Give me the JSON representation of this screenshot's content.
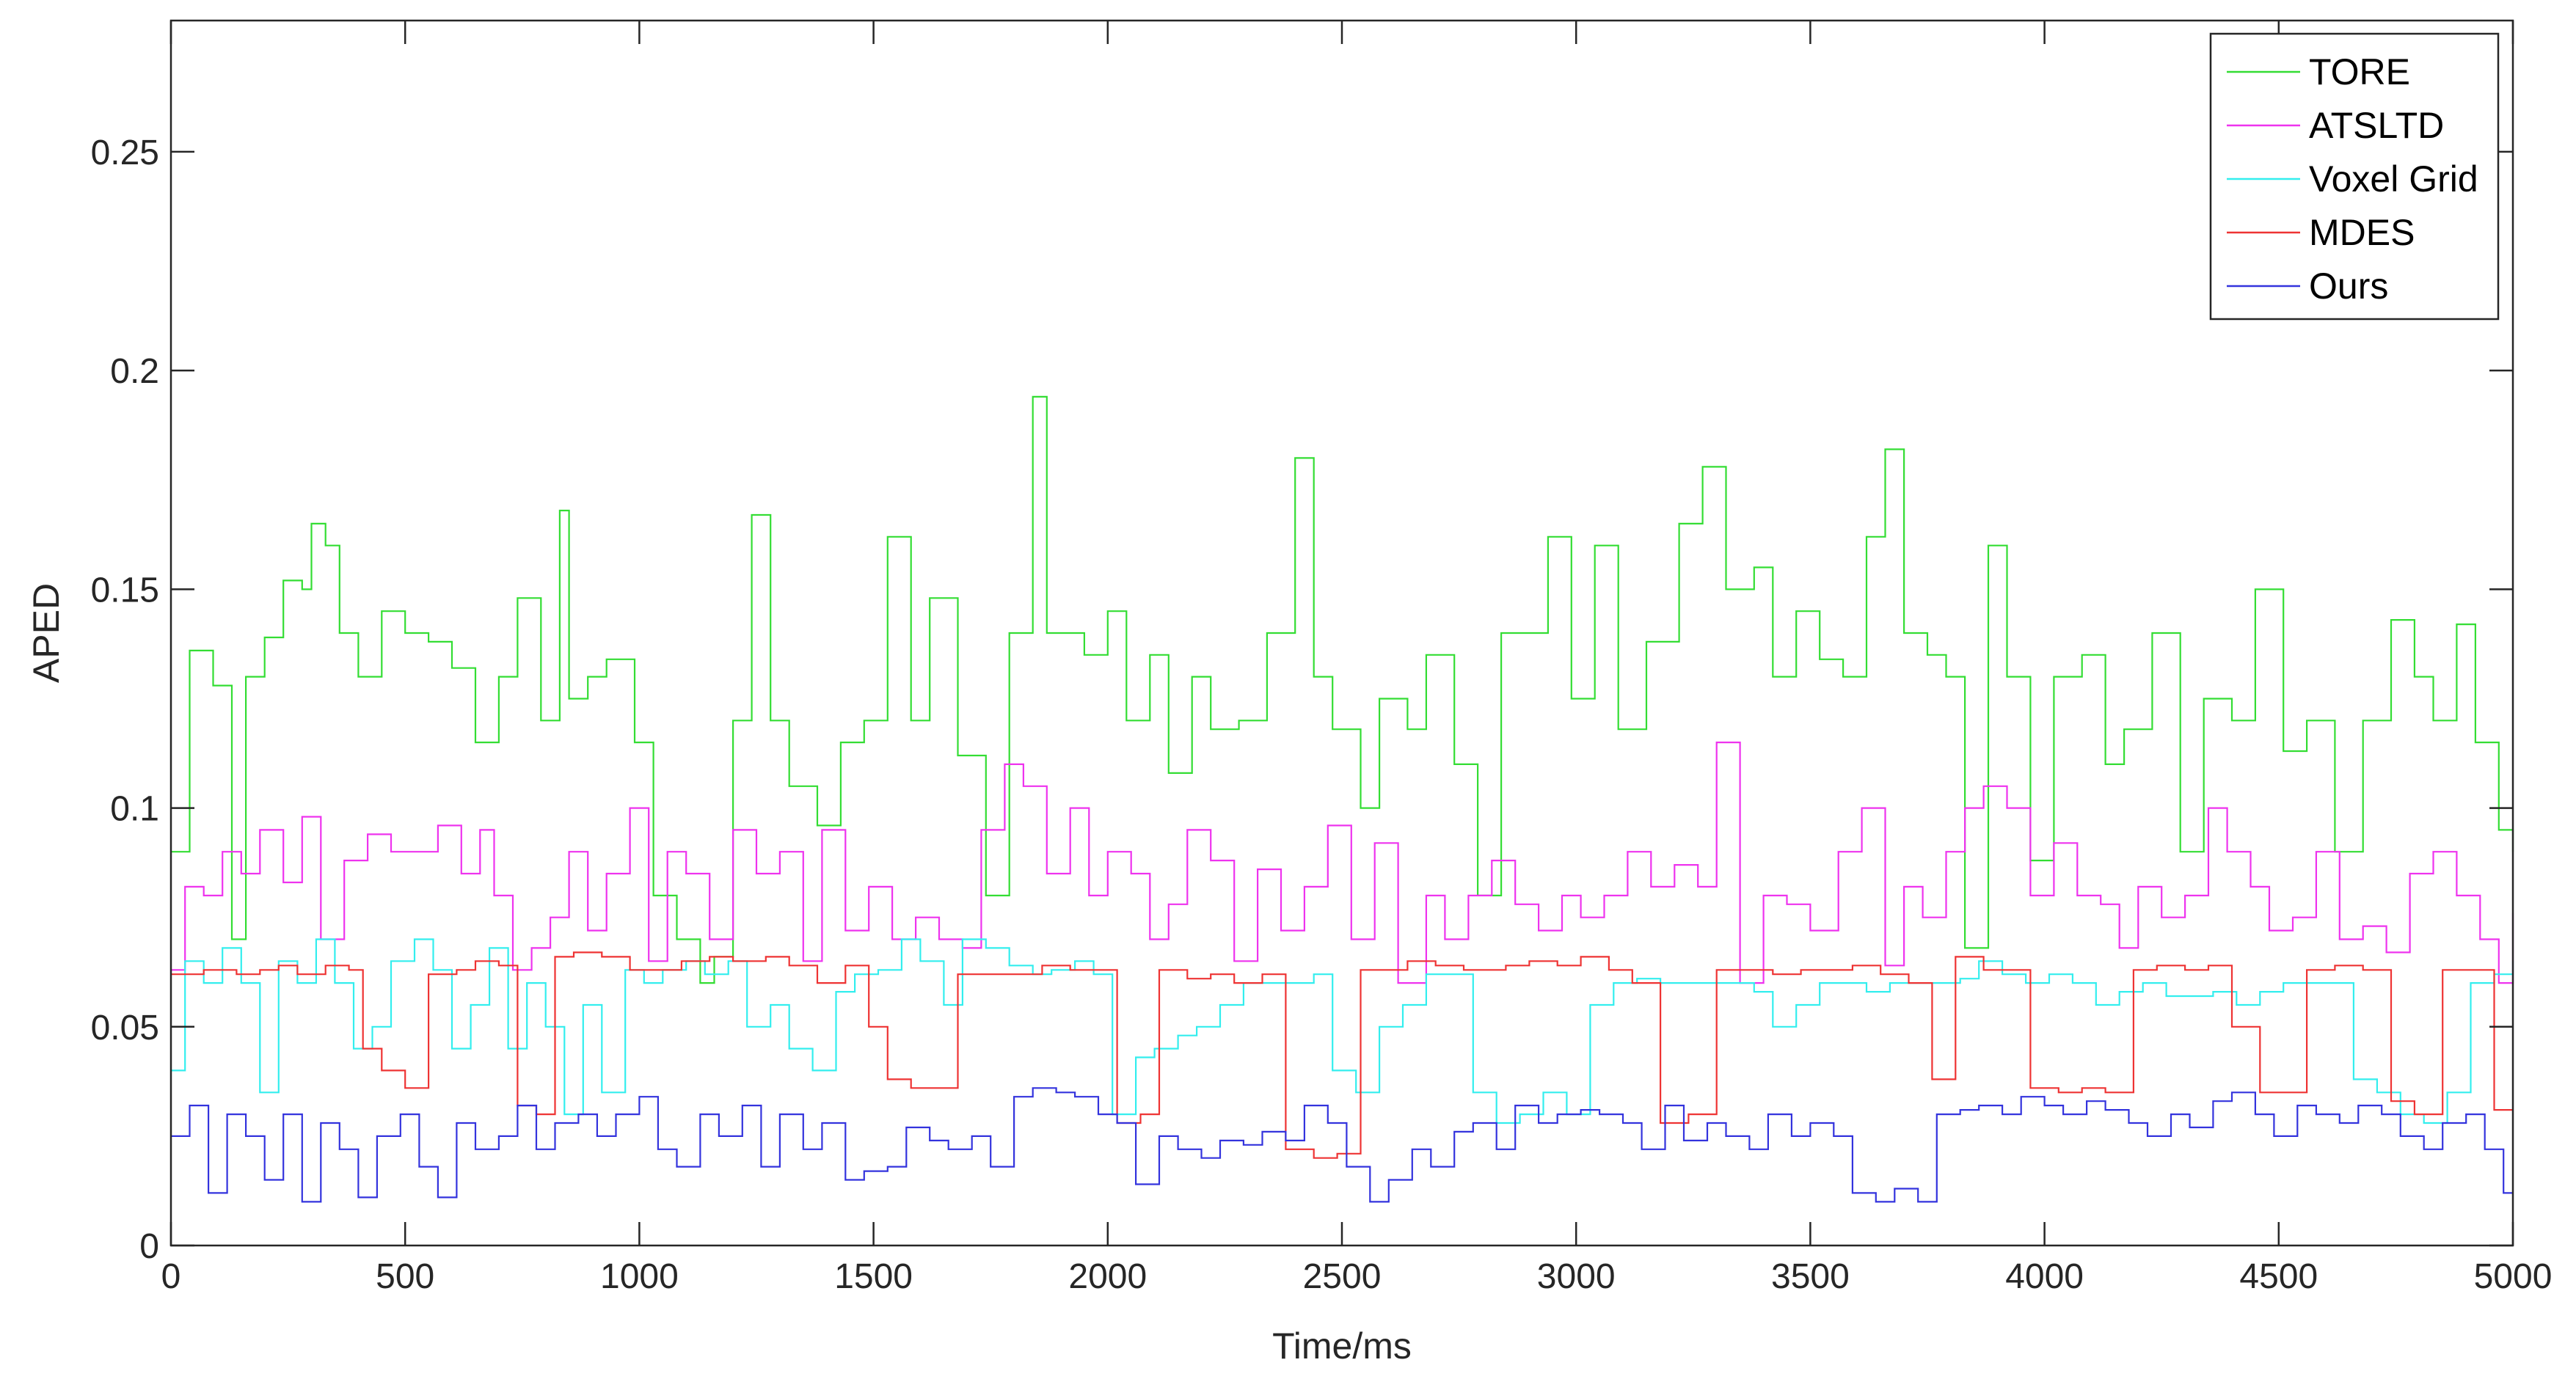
{
  "chart_data": {
    "type": "line",
    "title": "",
    "xlabel": "Time/ms",
    "ylabel": "APED",
    "xlim": [
      0,
      5000
    ],
    "ylim": [
      0,
      0.28
    ],
    "x_ticks": [
      0,
      500,
      1000,
      1500,
      2000,
      2500,
      3000,
      3500,
      4000,
      4500,
      5000
    ],
    "x_tick_labels": [
      "0",
      "500",
      "1000",
      "1500",
      "2000",
      "2500",
      "3000",
      "3500",
      "4000",
      "4500",
      "5000"
    ],
    "y_ticks": [
      0,
      0.05,
      0.1,
      0.15,
      0.2,
      0.25
    ],
    "y_tick_labels": [
      "0",
      "0.05",
      "0.1",
      "0.15",
      "0.2",
      "0.25"
    ],
    "grid": false,
    "legend": "top-right",
    "series": [
      {
        "name": "TORE",
        "color": "#33dd33",
        "x": [
          0,
          40,
          90,
          130,
          160,
          200,
          240,
          280,
          300,
          330,
          360,
          400,
          450,
          500,
          550,
          600,
          650,
          700,
          740,
          790,
          830,
          850,
          890,
          930,
          990,
          1030,
          1080,
          1130,
          1160,
          1200,
          1240,
          1280,
          1320,
          1380,
          1430,
          1480,
          1530,
          1580,
          1620,
          1680,
          1740,
          1790,
          1840,
          1870,
          1900,
          1950,
          2000,
          2040,
          2090,
          2130,
          2180,
          2220,
          2280,
          2340,
          2400,
          2440,
          2480,
          2540,
          2580,
          2640,
          2680,
          2740,
          2790,
          2840,
          2890,
          2940,
          2990,
          3040,
          3090,
          3150,
          3220,
          3270,
          3320,
          3380,
          3420,
          3470,
          3520,
          3570,
          3620,
          3660,
          3700,
          3750,
          3790,
          3830,
          3880,
          3920,
          3970,
          4020,
          4080,
          4130,
          4170,
          4230,
          4290,
          4340,
          4400,
          4450,
          4510,
          4560,
          4620,
          4680,
          4740,
          4790,
          4830,
          4880,
          4920,
          4970,
          5000
        ],
        "y": [
          0.09,
          0.136,
          0.128,
          0.07,
          0.13,
          0.139,
          0.152,
          0.15,
          0.165,
          0.16,
          0.14,
          0.13,
          0.145,
          0.14,
          0.138,
          0.132,
          0.115,
          0.13,
          0.148,
          0.12,
          0.168,
          0.125,
          0.13,
          0.134,
          0.115,
          0.08,
          0.07,
          0.06,
          0.066,
          0.12,
          0.167,
          0.12,
          0.105,
          0.096,
          0.115,
          0.12,
          0.162,
          0.12,
          0.148,
          0.112,
          0.08,
          0.14,
          0.194,
          0.14,
          0.14,
          0.135,
          0.145,
          0.12,
          0.135,
          0.108,
          0.13,
          0.118,
          0.12,
          0.14,
          0.18,
          0.13,
          0.118,
          0.1,
          0.125,
          0.118,
          0.135,
          0.11,
          0.08,
          0.14,
          0.14,
          0.162,
          0.125,
          0.16,
          0.118,
          0.138,
          0.165,
          0.178,
          0.15,
          0.155,
          0.13,
          0.145,
          0.134,
          0.13,
          0.162,
          0.182,
          0.14,
          0.135,
          0.13,
          0.068,
          0.16,
          0.13,
          0.088,
          0.13,
          0.135,
          0.11,
          0.118,
          0.14,
          0.09,
          0.125,
          0.12,
          0.15,
          0.113,
          0.12,
          0.09,
          0.12,
          0.143,
          0.13,
          0.12,
          0.142,
          0.115,
          0.095,
          0.09
        ]
      },
      {
        "name": "ATSLTD",
        "color": "#ee33ee",
        "x": [
          0,
          30,
          70,
          110,
          150,
          190,
          240,
          280,
          320,
          370,
          420,
          470,
          520,
          570,
          620,
          660,
          690,
          730,
          770,
          810,
          850,
          890,
          930,
          980,
          1020,
          1060,
          1100,
          1150,
          1200,
          1250,
          1300,
          1350,
          1390,
          1440,
          1490,
          1540,
          1590,
          1640,
          1690,
          1730,
          1780,
          1820,
          1870,
          1920,
          1960,
          2000,
          2050,
          2090,
          2130,
          2170,
          2220,
          2270,
          2320,
          2370,
          2420,
          2470,
          2520,
          2570,
          2620,
          2680,
          2720,
          2770,
          2820,
          2870,
          2920,
          2970,
          3010,
          3060,
          3110,
          3160,
          3210,
          3260,
          3300,
          3350,
          3400,
          3450,
          3500,
          3560,
          3610,
          3660,
          3700,
          3740,
          3790,
          3830,
          3870,
          3920,
          3970,
          4020,
          4070,
          4120,
          4160,
          4200,
          4250,
          4300,
          4350,
          4390,
          4440,
          4480,
          4530,
          4580,
          4630,
          4680,
          4730,
          4780,
          4830,
          4880,
          4930,
          4970,
          5000
        ],
        "y": [
          0.063,
          0.082,
          0.08,
          0.09,
          0.085,
          0.095,
          0.083,
          0.098,
          0.07,
          0.088,
          0.094,
          0.09,
          0.09,
          0.096,
          0.085,
          0.095,
          0.08,
          0.063,
          0.068,
          0.075,
          0.09,
          0.072,
          0.085,
          0.1,
          0.065,
          0.09,
          0.085,
          0.07,
          0.095,
          0.085,
          0.09,
          0.065,
          0.095,
          0.072,
          0.082,
          0.07,
          0.075,
          0.07,
          0.068,
          0.095,
          0.11,
          0.105,
          0.085,
          0.1,
          0.08,
          0.09,
          0.085,
          0.07,
          0.078,
          0.095,
          0.088,
          0.065,
          0.086,
          0.072,
          0.082,
          0.096,
          0.07,
          0.092,
          0.06,
          0.08,
          0.07,
          0.08,
          0.088,
          0.078,
          0.072,
          0.08,
          0.075,
          0.08,
          0.09,
          0.082,
          0.087,
          0.082,
          0.115,
          0.06,
          0.08,
          0.078,
          0.072,
          0.09,
          0.1,
          0.064,
          0.082,
          0.075,
          0.09,
          0.1,
          0.105,
          0.1,
          0.08,
          0.092,
          0.08,
          0.078,
          0.068,
          0.082,
          0.075,
          0.08,
          0.1,
          0.09,
          0.082,
          0.072,
          0.075,
          0.09,
          0.07,
          0.073,
          0.067,
          0.085,
          0.09,
          0.08,
          0.07,
          0.06,
          0.076
        ]
      },
      {
        "name": "Voxel Grid",
        "color": "#33eeee",
        "x": [
          0,
          30,
          70,
          110,
          150,
          190,
          230,
          270,
          310,
          350,
          390,
          430,
          470,
          520,
          560,
          600,
          640,
          680,
          720,
          760,
          800,
          840,
          880,
          920,
          970,
          1010,
          1050,
          1100,
          1140,
          1190,
          1230,
          1280,
          1320,
          1370,
          1420,
          1460,
          1510,
          1560,
          1600,
          1650,
          1690,
          1740,
          1790,
          1840,
          1880,
          1930,
          1970,
          2010,
          2060,
          2100,
          2150,
          2190,
          2240,
          2290,
          2340,
          2390,
          2440,
          2480,
          2530,
          2580,
          2630,
          2680,
          2730,
          2780,
          2830,
          2880,
          2930,
          2980,
          3030,
          3080,
          3130,
          3180,
          3230,
          3280,
          3330,
          3380,
          3420,
          3470,
          3520,
          3570,
          3620,
          3670,
          3720,
          3770,
          3820,
          3860,
          3910,
          3960,
          4010,
          4060,
          4110,
          4160,
          4210,
          4260,
          4310,
          4360,
          4410,
          4460,
          4510,
          4560,
          4610,
          4660,
          4710,
          4760,
          4810,
          4860,
          4910,
          4960,
          5000
        ],
        "y": [
          0.04,
          0.065,
          0.06,
          0.068,
          0.06,
          0.035,
          0.065,
          0.06,
          0.07,
          0.06,
          0.045,
          0.05,
          0.065,
          0.07,
          0.063,
          0.045,
          0.055,
          0.068,
          0.045,
          0.06,
          0.05,
          0.03,
          0.055,
          0.035,
          0.063,
          0.06,
          0.063,
          0.065,
          0.062,
          0.065,
          0.05,
          0.055,
          0.045,
          0.04,
          0.058,
          0.062,
          0.063,
          0.07,
          0.065,
          0.055,
          0.07,
          0.068,
          0.064,
          0.062,
          0.063,
          0.065,
          0.062,
          0.03,
          0.043,
          0.045,
          0.048,
          0.05,
          0.055,
          0.06,
          0.06,
          0.06,
          0.062,
          0.04,
          0.035,
          0.05,
          0.055,
          0.062,
          0.062,
          0.035,
          0.028,
          0.03,
          0.035,
          0.03,
          0.055,
          0.06,
          0.061,
          0.06,
          0.06,
          0.06,
          0.06,
          0.058,
          0.05,
          0.055,
          0.06,
          0.06,
          0.058,
          0.06,
          0.06,
          0.06,
          0.061,
          0.065,
          0.062,
          0.06,
          0.062,
          0.06,
          0.055,
          0.058,
          0.06,
          0.057,
          0.057,
          0.058,
          0.055,
          0.058,
          0.06,
          0.06,
          0.06,
          0.038,
          0.035,
          0.03,
          0.028,
          0.035,
          0.06,
          0.062,
          0.065
        ]
      },
      {
        "name": "MDES",
        "color": "#ee3333",
        "x": [
          0,
          70,
          140,
          190,
          230,
          270,
          330,
          380,
          410,
          450,
          500,
          550,
          610,
          650,
          700,
          740,
          780,
          820,
          860,
          920,
          980,
          1040,
          1090,
          1150,
          1200,
          1270,
          1320,
          1380,
          1440,
          1490,
          1530,
          1580,
          1620,
          1680,
          1740,
          1800,
          1860,
          1920,
          1970,
          2020,
          2070,
          2110,
          2170,
          2220,
          2270,
          2330,
          2380,
          2440,
          2490,
          2540,
          2580,
          2640,
          2700,
          2760,
          2810,
          2850,
          2900,
          2960,
          3010,
          3070,
          3120,
          3180,
          3240,
          3300,
          3370,
          3420,
          3480,
          3540,
          3590,
          3650,
          3710,
          3760,
          3810,
          3870,
          3920,
          3970,
          4030,
          4080,
          4130,
          4190,
          4240,
          4300,
          4350,
          4400,
          4460,
          4510,
          4560,
          4620,
          4680,
          4740,
          4790,
          4850,
          4910,
          4960,
          5000
        ],
        "y": [
          0.062,
          0.063,
          0.062,
          0.063,
          0.064,
          0.062,
          0.064,
          0.063,
          0.045,
          0.04,
          0.036,
          0.062,
          0.063,
          0.065,
          0.064,
          0.032,
          0.03,
          0.066,
          0.067,
          0.066,
          0.063,
          0.063,
          0.065,
          0.066,
          0.065,
          0.066,
          0.064,
          0.06,
          0.064,
          0.05,
          0.038,
          0.036,
          0.036,
          0.062,
          0.062,
          0.062,
          0.064,
          0.063,
          0.063,
          0.028,
          0.03,
          0.063,
          0.061,
          0.062,
          0.06,
          0.062,
          0.022,
          0.02,
          0.021,
          0.063,
          0.063,
          0.065,
          0.064,
          0.063,
          0.063,
          0.064,
          0.065,
          0.064,
          0.066,
          0.063,
          0.06,
          0.028,
          0.03,
          0.063,
          0.063,
          0.062,
          0.063,
          0.063,
          0.064,
          0.062,
          0.06,
          0.038,
          0.066,
          0.063,
          0.063,
          0.036,
          0.035,
          0.036,
          0.035,
          0.063,
          0.064,
          0.063,
          0.064,
          0.05,
          0.035,
          0.035,
          0.063,
          0.064,
          0.063,
          0.033,
          0.03,
          0.063,
          0.063,
          0.031,
          0.031
        ]
      },
      {
        "name": "Ours",
        "color": "#3333dd",
        "x": [
          0,
          40,
          80,
          120,
          160,
          200,
          240,
          280,
          320,
          360,
          400,
          440,
          490,
          530,
          570,
          610,
          650,
          700,
          740,
          780,
          820,
          870,
          910,
          950,
          1000,
          1040,
          1080,
          1130,
          1170,
          1220,
          1260,
          1300,
          1350,
          1390,
          1440,
          1480,
          1530,
          1570,
          1620,
          1660,
          1710,
          1750,
          1800,
          1840,
          1890,
          1930,
          1980,
          2020,
          2060,
          2110,
          2150,
          2200,
          2240,
          2290,
          2330,
          2380,
          2420,
          2470,
          2510,
          2560,
          2600,
          2650,
          2690,
          2740,
          2780,
          2830,
          2870,
          2920,
          2960,
          3010,
          3050,
          3100,
          3140,
          3190,
          3230,
          3280,
          3320,
          3370,
          3410,
          3460,
          3500,
          3550,
          3590,
          3640,
          3680,
          3730,
          3770,
          3820,
          3860,
          3910,
          3950,
          4000,
          4040,
          4090,
          4130,
          4180,
          4220,
          4270,
          4310,
          4360,
          4400,
          4450,
          4490,
          4540,
          4580,
          4630,
          4670,
          4720,
          4760,
          4810,
          4850,
          4900,
          4940,
          4980,
          5000
        ],
        "y": [
          0.025,
          0.032,
          0.012,
          0.03,
          0.025,
          0.015,
          0.03,
          0.01,
          0.028,
          0.022,
          0.011,
          0.025,
          0.03,
          0.018,
          0.011,
          0.028,
          0.022,
          0.025,
          0.032,
          0.022,
          0.028,
          0.03,
          0.025,
          0.03,
          0.034,
          0.022,
          0.018,
          0.03,
          0.025,
          0.032,
          0.018,
          0.03,
          0.022,
          0.028,
          0.015,
          0.017,
          0.018,
          0.027,
          0.024,
          0.022,
          0.025,
          0.018,
          0.034,
          0.036,
          0.035,
          0.034,
          0.03,
          0.028,
          0.014,
          0.025,
          0.022,
          0.02,
          0.024,
          0.023,
          0.026,
          0.024,
          0.032,
          0.028,
          0.018,
          0.01,
          0.015,
          0.022,
          0.018,
          0.026,
          0.028,
          0.022,
          0.032,
          0.028,
          0.03,
          0.031,
          0.03,
          0.028,
          0.022,
          0.032,
          0.024,
          0.028,
          0.025,
          0.022,
          0.03,
          0.025,
          0.028,
          0.025,
          0.012,
          0.01,
          0.013,
          0.01,
          0.03,
          0.031,
          0.032,
          0.03,
          0.034,
          0.032,
          0.03,
          0.033,
          0.031,
          0.028,
          0.025,
          0.03,
          0.027,
          0.033,
          0.035,
          0.03,
          0.025,
          0.032,
          0.03,
          0.028,
          0.032,
          0.03,
          0.025,
          0.022,
          0.028,
          0.03,
          0.022,
          0.012,
          0.012
        ]
      }
    ]
  }
}
